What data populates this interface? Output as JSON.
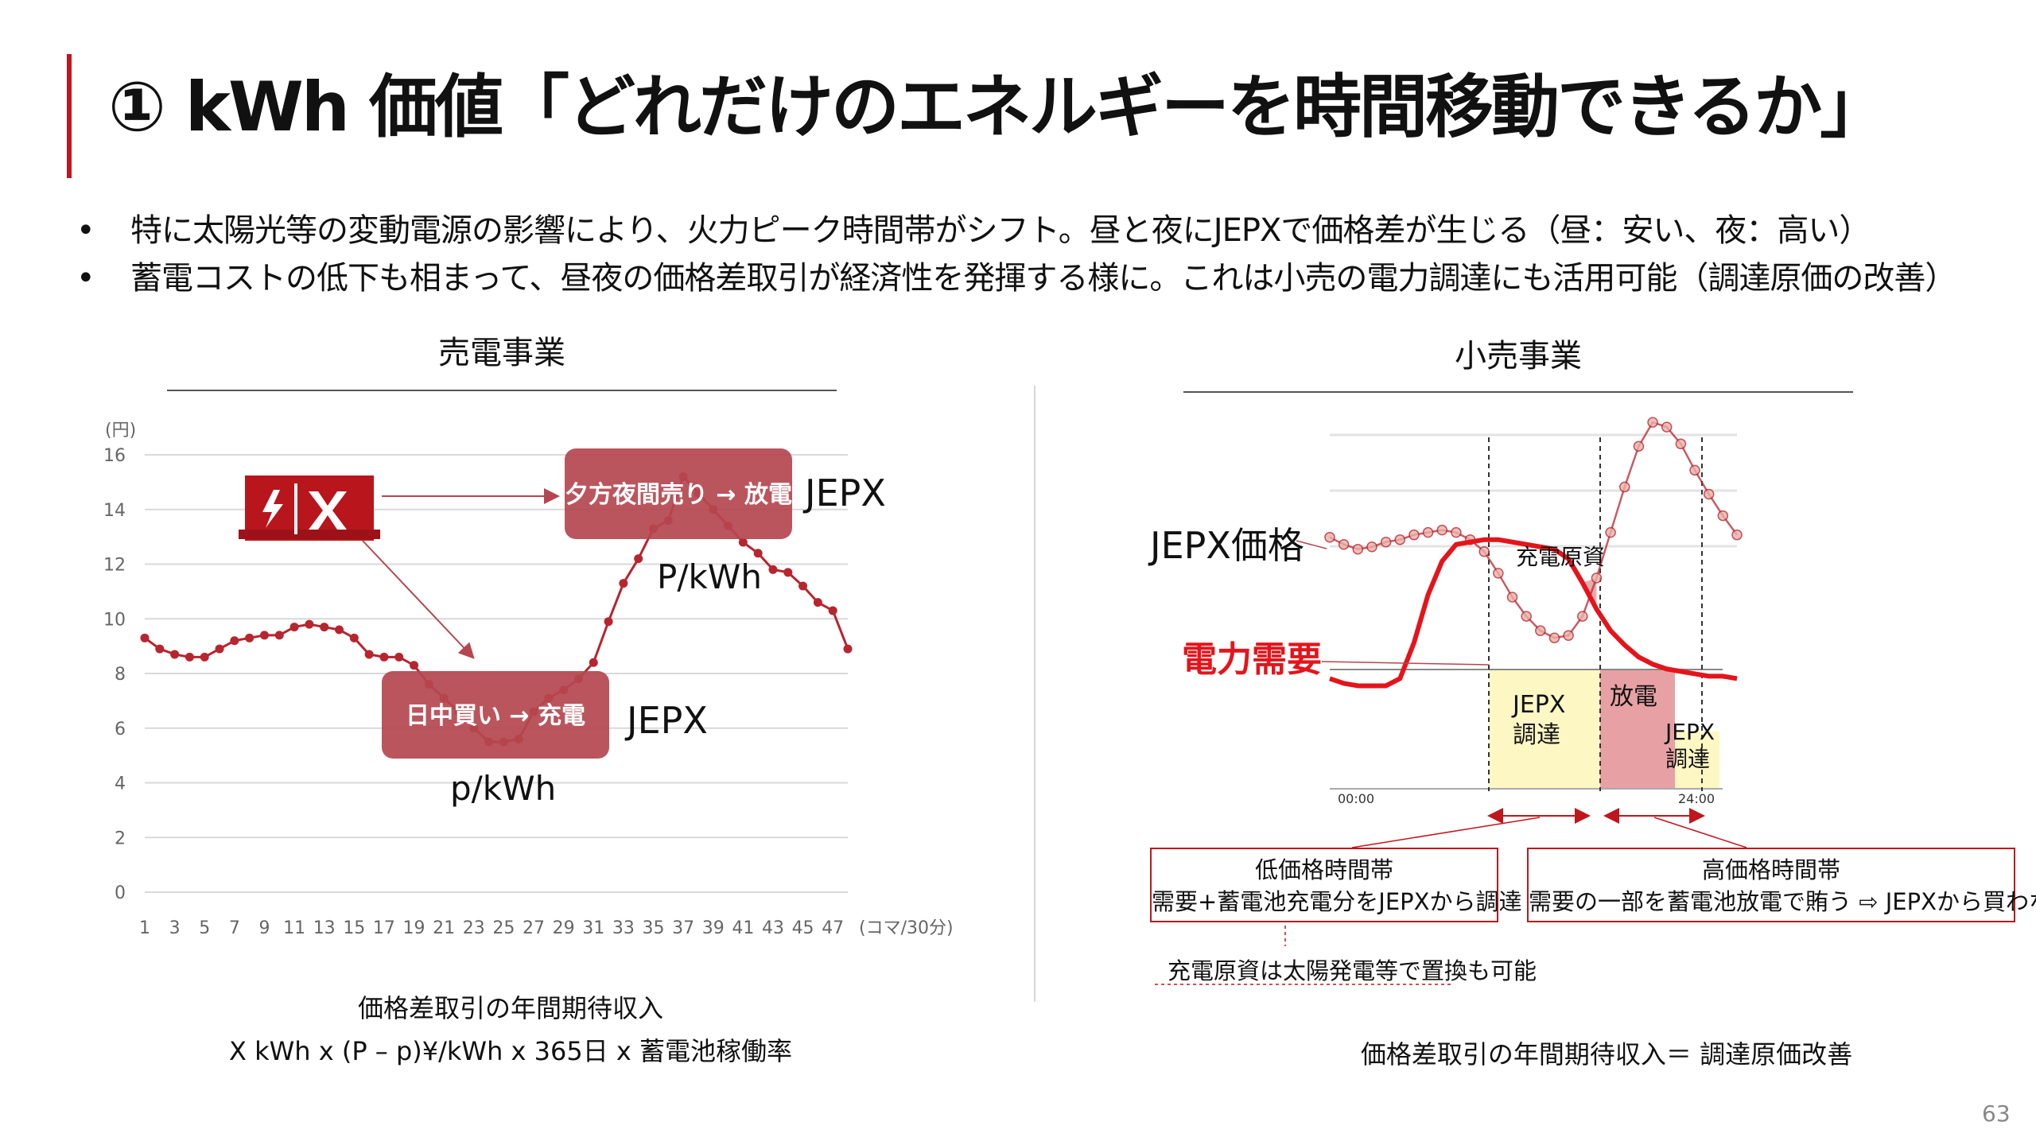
{
  "slide": {
    "title": "① kWh 価値「どれだけのエネルギーを時間移動できるか」",
    "bullets": [
      "特に太陽光等の変動電源の影響により、火力ピーク時間帯がシフト。昼と夜にJEPXで価格差が生じる（昼：安い、夜：高い）",
      "蓄電コストの低下も相まって、昼夜の価格差取引が経済性を発揮する様に。これは小売の電力調達にも活用可能（調達原価の改善）"
    ],
    "page_number": "63"
  },
  "left": {
    "heading": "売電事業",
    "caption_line1": "価格差取引の年間期待収入",
    "caption_line2": "X kWh x (P – p)¥/kWh x 365日 x 蓄電池稼働率",
    "annotations": {
      "sell_label": "夕方夜間売り → 放電",
      "buy_label": "日中買い → 充電",
      "sell_market": "JEPX",
      "buy_market": "JEPX",
      "sell_price": "P/kWh",
      "buy_price": "p/kWh",
      "battery_icon": "battery-container-icon"
    }
  },
  "right": {
    "heading": "小売事業",
    "caption": "価格差取引の年間期待収入＝ 調達原価改善",
    "labels": {
      "price_series": "JEPX価格",
      "demand_series": "電力需要",
      "charge_cost": "充電原資",
      "jepx_proc_1": "JEPX\n調達",
      "discharge": "放電",
      "jepx_proc_2": "JEPX\n調達",
      "time_start": "00:00",
      "time_end": "24:00"
    },
    "low_box": {
      "title": "低価格時間帯",
      "body": "需要+蓄電池充電分をJEPXから調達"
    },
    "high_box": {
      "title": "高価格時間帯",
      "body": "需要の一部を蓄電池放電で賄う ⇨ JEPXから買わない"
    },
    "note": "充電原資は太陽発電等で置換も可能"
  },
  "colors": {
    "accent": "#c0161d",
    "series": "#b7252f",
    "label_box": "#b5464f",
    "yellow_zone": "#fdf7c4",
    "red_zone": "#e7a1a4",
    "demand": "#e5141b"
  },
  "chart_data": [
    {
      "type": "line",
      "title": "",
      "ylabel": "(円)",
      "xlabel": "(コマ/30分)",
      "ylim": [
        0,
        16
      ],
      "yticks": [
        0,
        2,
        4,
        6,
        8,
        10,
        12,
        14,
        16
      ],
      "xticks": [
        "1",
        "3",
        "5",
        "7",
        "9",
        "11",
        "13",
        "15",
        "17",
        "19",
        "21",
        "23",
        "25",
        "27",
        "29",
        "31",
        "33",
        "35",
        "37",
        "39",
        "41",
        "43",
        "45",
        "47"
      ],
      "grid": true,
      "x": [
        1,
        2,
        3,
        4,
        5,
        6,
        7,
        8,
        9,
        10,
        11,
        12,
        13,
        14,
        15,
        16,
        17,
        18,
        19,
        20,
        21,
        22,
        23,
        24,
        25,
        26,
        27,
        28,
        29,
        30,
        31,
        32,
        33,
        34,
        35,
        36,
        37,
        38,
        39,
        40,
        41,
        42,
        43,
        44,
        45,
        46,
        47,
        48
      ],
      "series": [
        {
          "name": "",
          "values": [
            9.3,
            8.9,
            8.7,
            8.6,
            8.6,
            8.9,
            9.2,
            9.3,
            9.4,
            9.4,
            9.7,
            9.8,
            9.7,
            9.6,
            9.3,
            8.7,
            8.6,
            8.6,
            8.3,
            7.6,
            7.1,
            6.6,
            6.0,
            5.5,
            5.5,
            5.6,
            6.6,
            7.1,
            7.4,
            7.8,
            8.4,
            9.9,
            11.3,
            12.2,
            13.3,
            13.6,
            15.2,
            14.6,
            14.0,
            13.4,
            12.8,
            12.4,
            11.8,
            11.7,
            11.2,
            10.6,
            10.3,
            8.9
          ]
        }
      ]
    },
    {
      "type": "line",
      "title": "",
      "xlabel": "",
      "ylabel": "",
      "xticks": [
        "00:00",
        "24:00"
      ],
      "grid": true,
      "series": [
        {
          "name": "JEPX価格",
          "values": [
            10.5,
            10.2,
            10.0,
            10.1,
            10.3,
            10.4,
            10.6,
            10.7,
            10.8,
            10.7,
            10.4,
            9.9,
            9.0,
            8.0,
            7.2,
            6.6,
            6.3,
            6.4,
            7.2,
            8.8,
            10.7,
            12.6,
            14.3,
            15.3,
            15.1,
            14.4,
            13.3,
            12.3,
            11.4,
            10.6
          ]
        },
        {
          "name": "電力需要",
          "values": [
            4.6,
            4.4,
            4.3,
            4.3,
            4.3,
            4.6,
            6.1,
            8.1,
            9.5,
            10.2,
            10.3,
            10.4,
            10.4,
            10.3,
            10.2,
            10.1,
            10.0,
            9.6,
            8.6,
            7.5,
            6.6,
            6.0,
            5.5,
            5.2,
            5.0,
            4.9,
            4.8,
            4.7,
            4.7,
            4.6
          ]
        }
      ]
    }
  ]
}
